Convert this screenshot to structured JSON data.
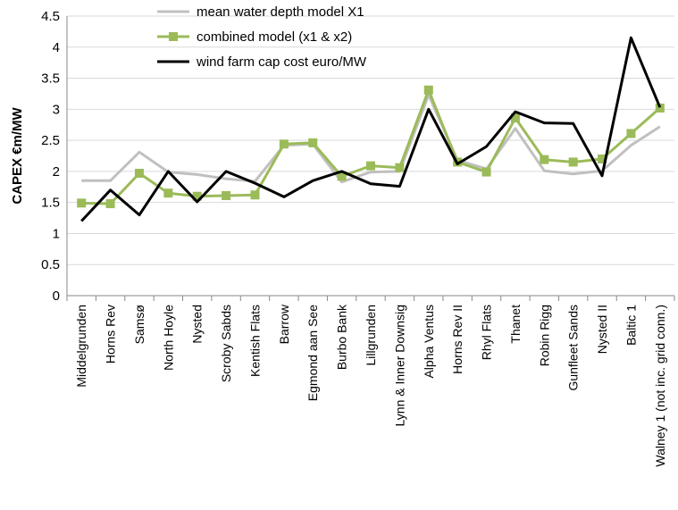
{
  "chart_data": {
    "type": "line",
    "ylabel": "CAPEX €m/MW",
    "ylim": [
      0,
      4.5
    ],
    "yticks": [
      0,
      0.5,
      1,
      1.5,
      2,
      2.5,
      3,
      3.5,
      4,
      4.5
    ],
    "ytick_labels": [
      "0",
      "0.5",
      "1",
      "1.5",
      "2",
      "2.5",
      "3",
      "3.5",
      "4",
      "4.5"
    ],
    "grid": "horizontal",
    "legend_position": "top-center",
    "categories": [
      "Middelgrunden",
      "Horns Rev",
      "Samsø",
      "North Hoyle",
      "Nysted",
      "Scroby Sabds",
      "Kentish Flats",
      "Barrow",
      "Egmond aan See",
      "Burbo Bank",
      "Lillgrunden",
      "Lynn & Inner Downsig",
      "Alpha Ventus",
      "Horns Rev II",
      "Rhyl Flats",
      "Thanet",
      "Robin Rigg",
      "Gunfleet Sands",
      "Nysted II",
      "Baltic 1",
      "Walney 1 (not inc. grid conn.)"
    ],
    "series": [
      {
        "name": "mean water depth model X1",
        "color": "#c0c0c0",
        "marker": "none",
        "values": [
          1.85,
          1.85,
          2.31,
          1.99,
          1.95,
          1.88,
          1.84,
          2.42,
          2.44,
          1.83,
          1.99,
          2.0,
          3.23,
          2.18,
          2.04,
          2.69,
          2.01,
          1.96,
          2.01,
          2.42,
          2.72
        ]
      },
      {
        "name": "combined model (x1 & x2)",
        "color": "#9bbb59",
        "marker": "square",
        "values": [
          1.49,
          1.48,
          1.97,
          1.65,
          1.6,
          1.61,
          1.62,
          2.44,
          2.46,
          1.92,
          2.09,
          2.06,
          3.31,
          2.15,
          1.99,
          2.86,
          2.19,
          2.15,
          2.2,
          2.61,
          3.02
        ]
      },
      {
        "name": "wind farm cap cost euro/MW",
        "color": "#000000",
        "marker": "none",
        "values": [
          1.2,
          1.7,
          1.3,
          2.0,
          1.51,
          2.0,
          1.81,
          1.59,
          1.85,
          2.0,
          1.8,
          1.76,
          3.0,
          2.12,
          2.4,
          2.96,
          2.78,
          2.77,
          1.93,
          4.15,
          3.03
        ]
      }
    ]
  }
}
